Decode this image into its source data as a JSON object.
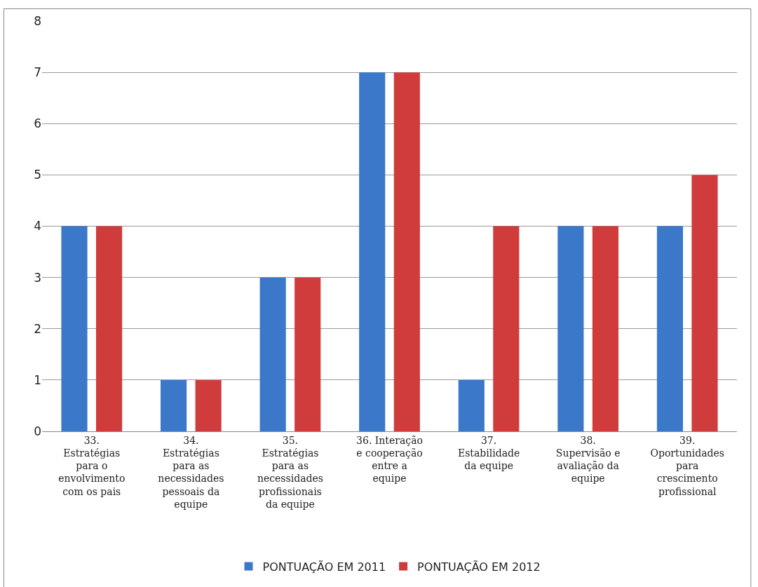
{
  "chart_data": {
    "type": "bar",
    "categories": [
      "33. Estratégias para o envolvimento com os pais",
      "34. Estratégias para as necessidades pessoais da equipe",
      "35. Estratégias para as necessidades profissionais da equipe",
      "36. Interação e cooperação entre a equipe",
      "37. Estabilidade da equipe",
      "38. Supervisão e avaliação da equipe",
      "39. Oportunidades para crescimento profissional"
    ],
    "series": [
      {
        "name": "PONTUAÇÃO EM 2011",
        "color": "#3b78c9",
        "values": [
          4,
          1,
          3,
          7,
          1,
          4,
          4
        ]
      },
      {
        "name": "PONTUAÇÃO EM 2012",
        "color": "#d03c3c",
        "values": [
          4,
          1,
          3,
          7,
          4,
          4,
          5
        ]
      }
    ],
    "ylim": [
      0,
      8
    ],
    "yticks": [
      0,
      1,
      2,
      3,
      4,
      5,
      6,
      7,
      8
    ],
    "grid": "y",
    "legend": "bottom"
  }
}
